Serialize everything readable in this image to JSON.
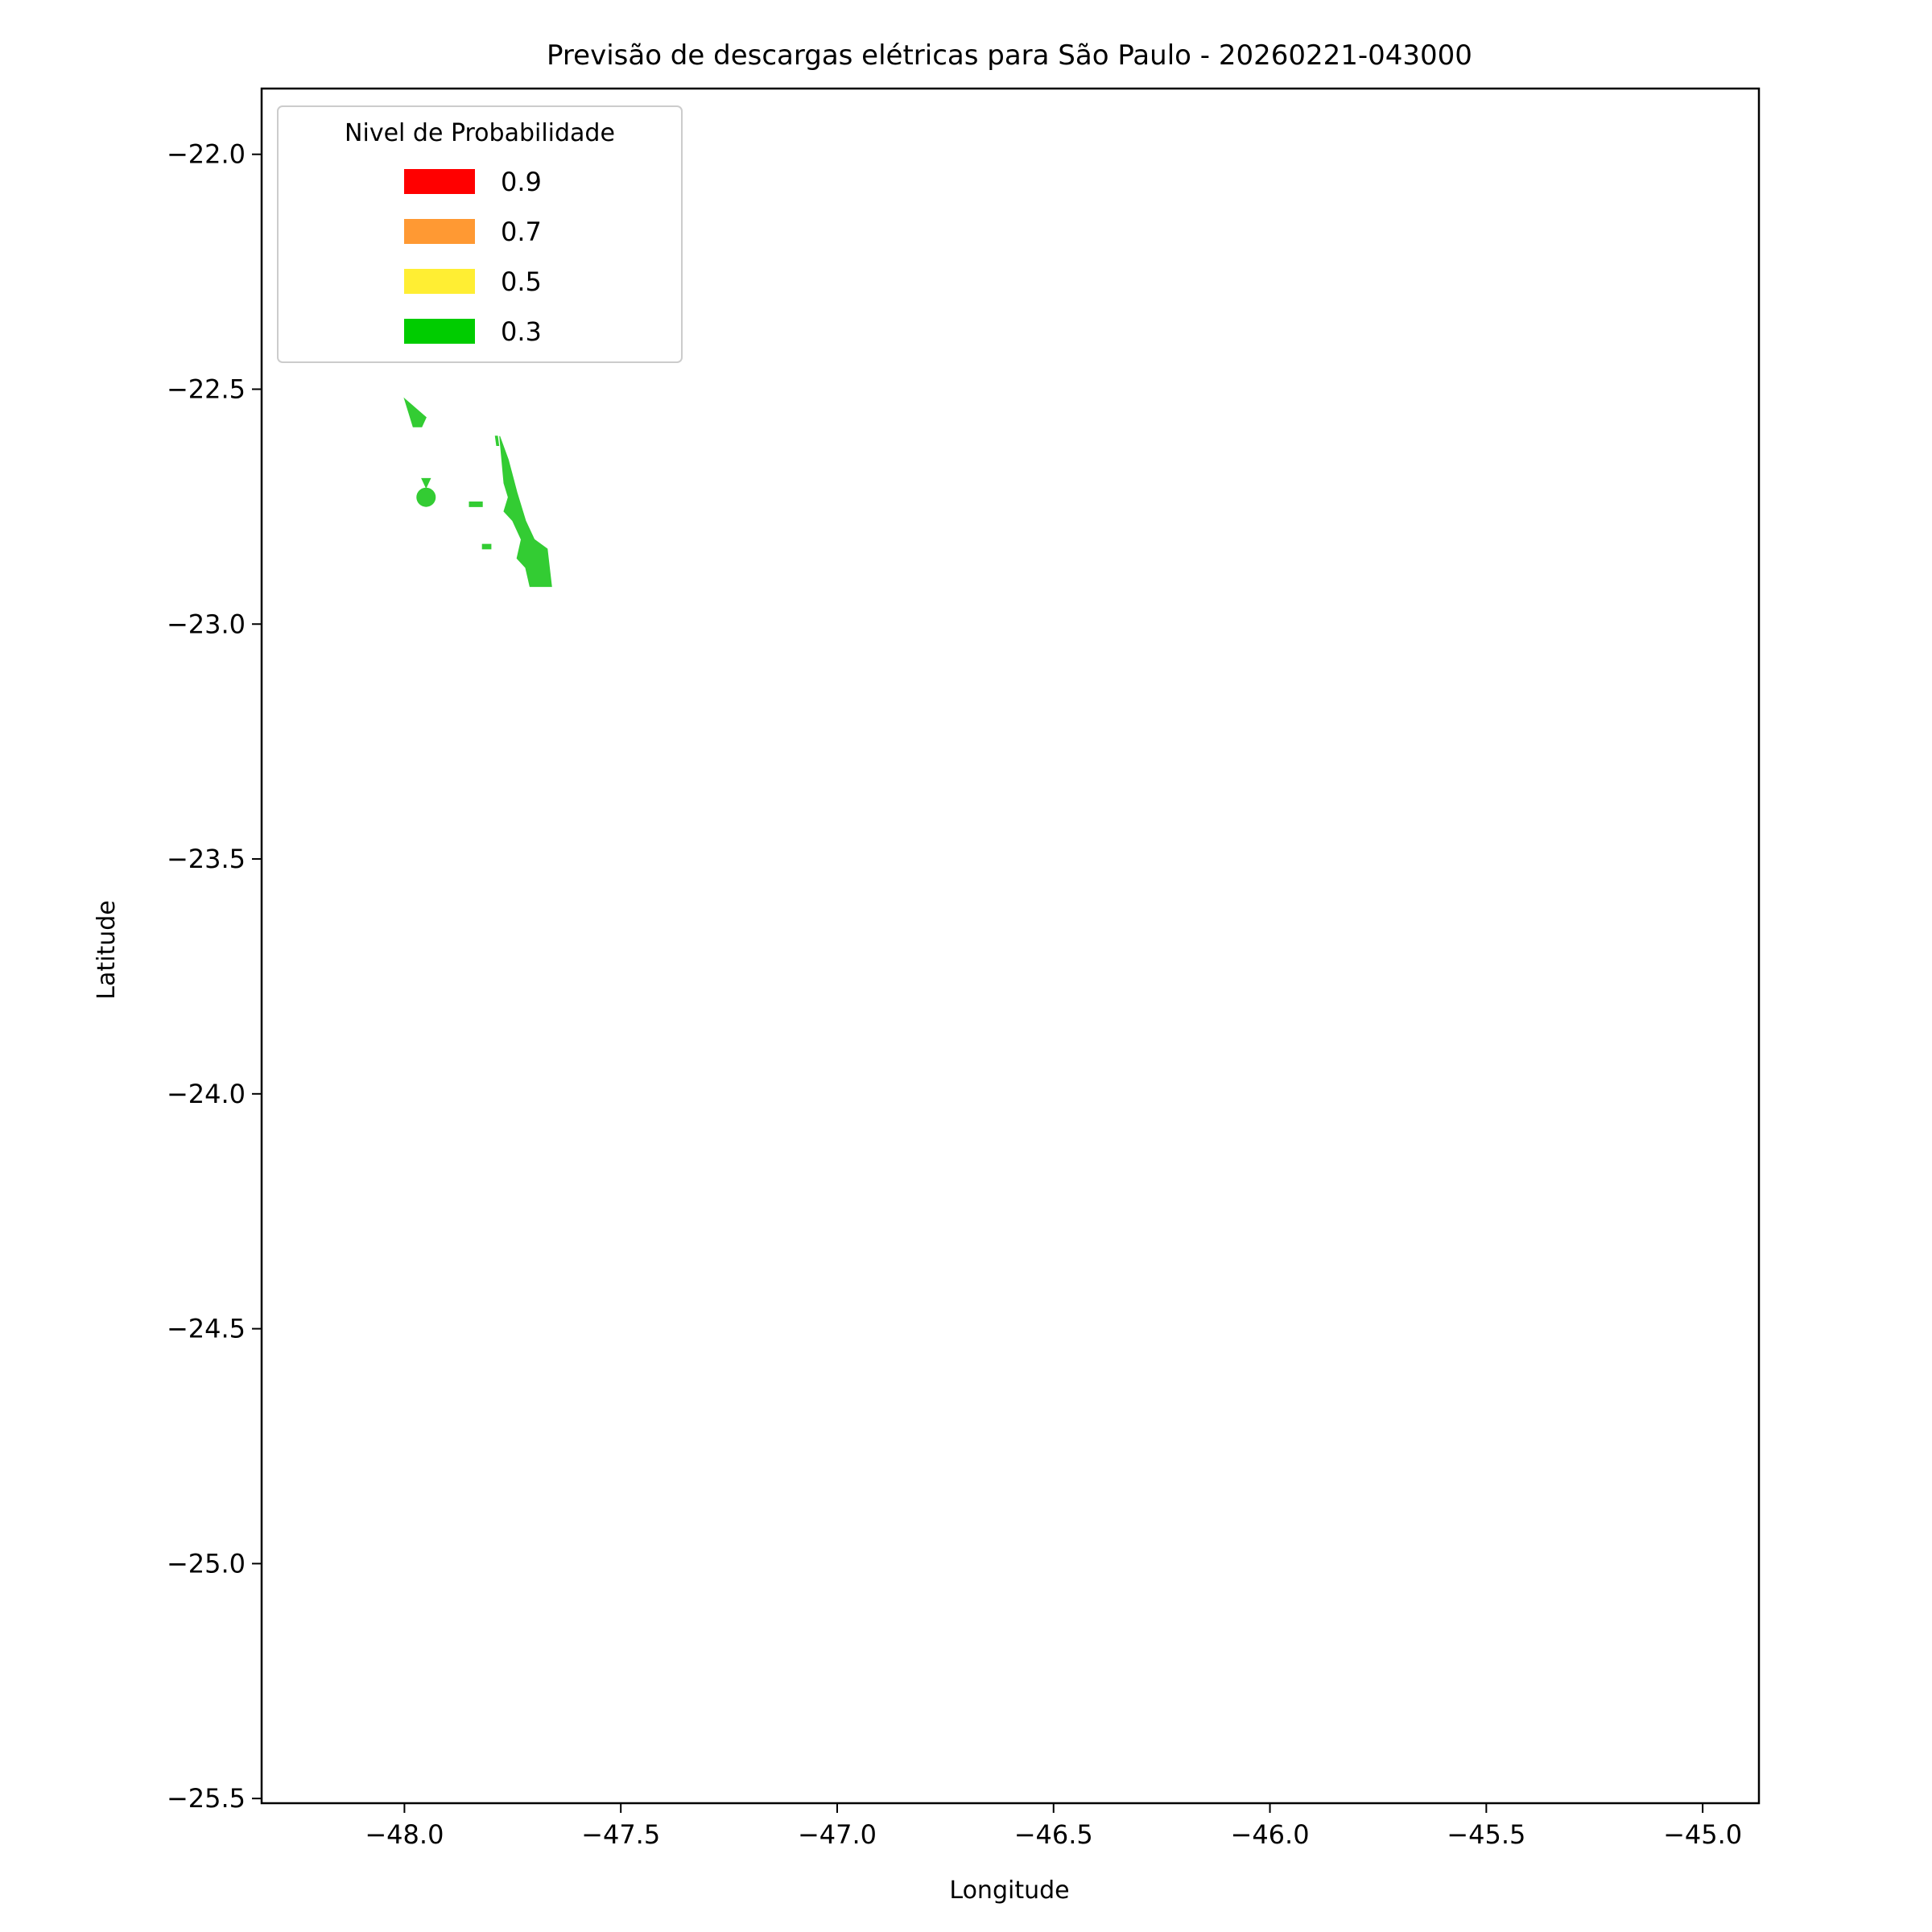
{
  "title": "Previsão de descargas elétricas para São Paulo - 20260221-043000",
  "xlabel": "Longitude",
  "ylabel": "Latitude",
  "xlim": [
    -48.33,
    -44.87
  ],
  "ylim": [
    -25.51,
    -21.86
  ],
  "xticks": [
    {
      "value": -48.0,
      "label": "−48.0"
    },
    {
      "value": -47.5,
      "label": "−47.5"
    },
    {
      "value": -47.0,
      "label": "−47.0"
    },
    {
      "value": -46.5,
      "label": "−46.5"
    },
    {
      "value": -46.0,
      "label": "−46.0"
    },
    {
      "value": -45.5,
      "label": "−45.5"
    },
    {
      "value": -45.0,
      "label": "−45.0"
    }
  ],
  "yticks": [
    {
      "value": -22.0,
      "label": "−22.0"
    },
    {
      "value": -22.5,
      "label": "−22.5"
    },
    {
      "value": -23.0,
      "label": "−23.0"
    },
    {
      "value": -23.5,
      "label": "−23.5"
    },
    {
      "value": -24.0,
      "label": "−24.0"
    },
    {
      "value": -24.5,
      "label": "−24.5"
    },
    {
      "value": -25.0,
      "label": "−25.0"
    },
    {
      "value": -25.5,
      "label": "−25.5"
    }
  ],
  "legend": {
    "title": "Nivel de Probabilidade",
    "placement": "upper-left",
    "entries": [
      {
        "label": "0.9",
        "color": "#ff0000"
      },
      {
        "label": "0.7",
        "color": "#ff9933"
      },
      {
        "label": "0.5",
        "color": "#ffee33"
      },
      {
        "label": "0.3",
        "color": "#00cc00"
      }
    ]
  },
  "chart_data": {
    "type": "map",
    "regions": [
      {
        "level": "0.3",
        "color": "#33cc33",
        "polygons": [
          [
            [
              -47.78,
              -22.6
            ],
            [
              -47.76,
              -22.65
            ],
            [
              -47.74,
              -22.72
            ],
            [
              -47.72,
              -22.78
            ],
            [
              -47.7,
              -22.82
            ],
            [
              -47.67,
              -22.84
            ],
            [
              -47.66,
              -22.92
            ],
            [
              -47.71,
              -22.92
            ],
            [
              -47.72,
              -22.88
            ],
            [
              -47.74,
              -22.86
            ],
            [
              -47.73,
              -22.82
            ],
            [
              -47.75,
              -22.78
            ],
            [
              -47.77,
              -22.76
            ],
            [
              -47.76,
              -22.73
            ],
            [
              -47.77,
              -22.7
            ]
          ],
          [
            [
              -48.0,
              -22.52
            ],
            [
              -47.95,
              -22.56
            ],
            [
              -47.96,
              -22.58
            ],
            [
              -47.98,
              -22.58
            ]
          ],
          [
            [
              -47.79,
              -22.6
            ],
            [
              -47.785,
              -22.6
            ],
            [
              -47.782,
              -22.62
            ],
            [
              -47.787,
              -22.62
            ]
          ],
          [
            [
              -47.96,
              -22.69
            ],
            [
              -47.94,
              -22.69
            ],
            [
              -47.95,
              -22.71
            ]
          ],
          [
            [
              -47.85,
              -22.74
            ],
            [
              -47.82,
              -22.74
            ],
            [
              -47.82,
              -22.75
            ],
            [
              -47.85,
              -22.75
            ]
          ],
          [
            [
              -47.82,
              -22.83
            ],
            [
              -47.8,
              -22.83
            ],
            [
              -47.8,
              -22.84
            ],
            [
              -47.82,
              -22.84
            ]
          ]
        ],
        "points": [
          {
            "lon": -47.95,
            "lat": -22.73
          }
        ]
      }
    ]
  }
}
